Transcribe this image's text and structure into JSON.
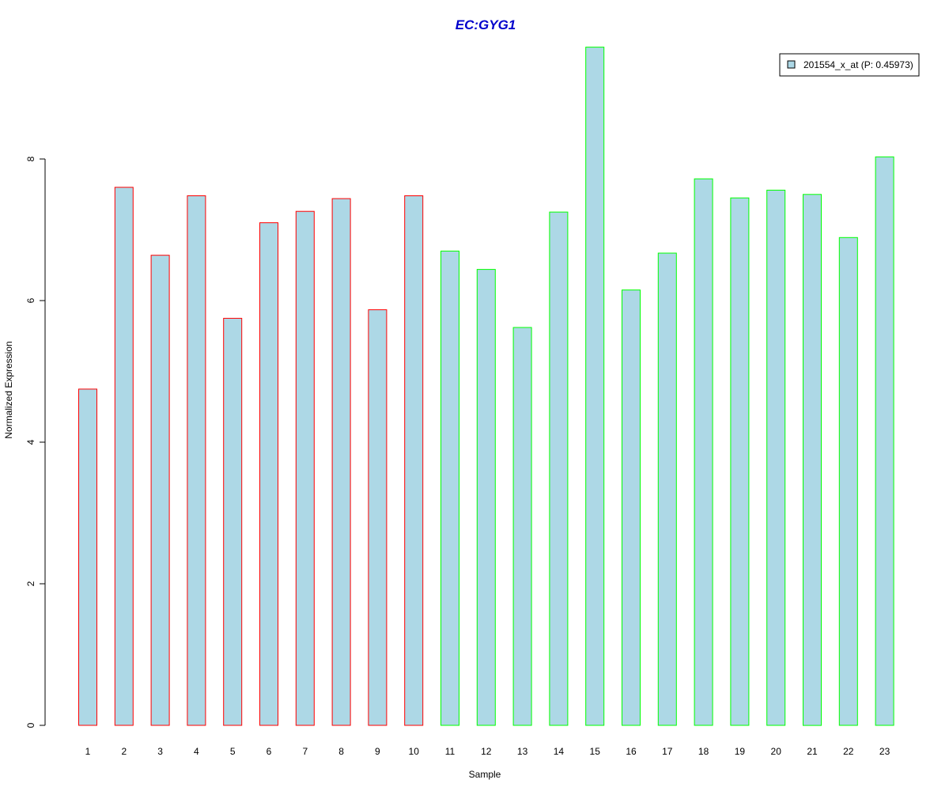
{
  "chart_data": {
    "type": "bar",
    "title": "EC:GYG1",
    "title_color": "#0000CC",
    "xlabel": "Sample",
    "ylabel": "Normalized Expression",
    "ylim": [
      0,
      9.6
    ],
    "y_ticks": [
      0,
      2,
      4,
      6,
      8
    ],
    "grid": false,
    "legend_position": "top-right",
    "categories": [
      "1",
      "2",
      "3",
      "4",
      "5",
      "6",
      "7",
      "8",
      "9",
      "10",
      "11",
      "12",
      "13",
      "14",
      "15",
      "16",
      "17",
      "18",
      "19",
      "20",
      "21",
      "22",
      "23"
    ],
    "series": [
      {
        "name": "201554_x_at (P: 0.45973)",
        "fill_color": "#ADD8E6",
        "values": [
          4.75,
          7.6,
          6.64,
          7.48,
          5.75,
          7.1,
          7.26,
          7.44,
          5.87,
          7.48,
          6.7,
          6.44,
          5.62,
          7.25,
          9.58,
          6.15,
          6.67,
          7.72,
          7.45,
          7.56,
          7.5,
          6.89,
          8.03
        ],
        "border_colors": [
          "#FF0000",
          "#FF0000",
          "#FF0000",
          "#FF0000",
          "#FF0000",
          "#FF0000",
          "#FF0000",
          "#FF0000",
          "#FF0000",
          "#FF0000",
          "#00FF00",
          "#00FF00",
          "#00FF00",
          "#00FF00",
          "#00FF00",
          "#00FF00",
          "#00FF00",
          "#00FF00",
          "#00FF00",
          "#00FF00",
          "#00FF00",
          "#00FF00",
          "#00FF00"
        ]
      }
    ]
  }
}
